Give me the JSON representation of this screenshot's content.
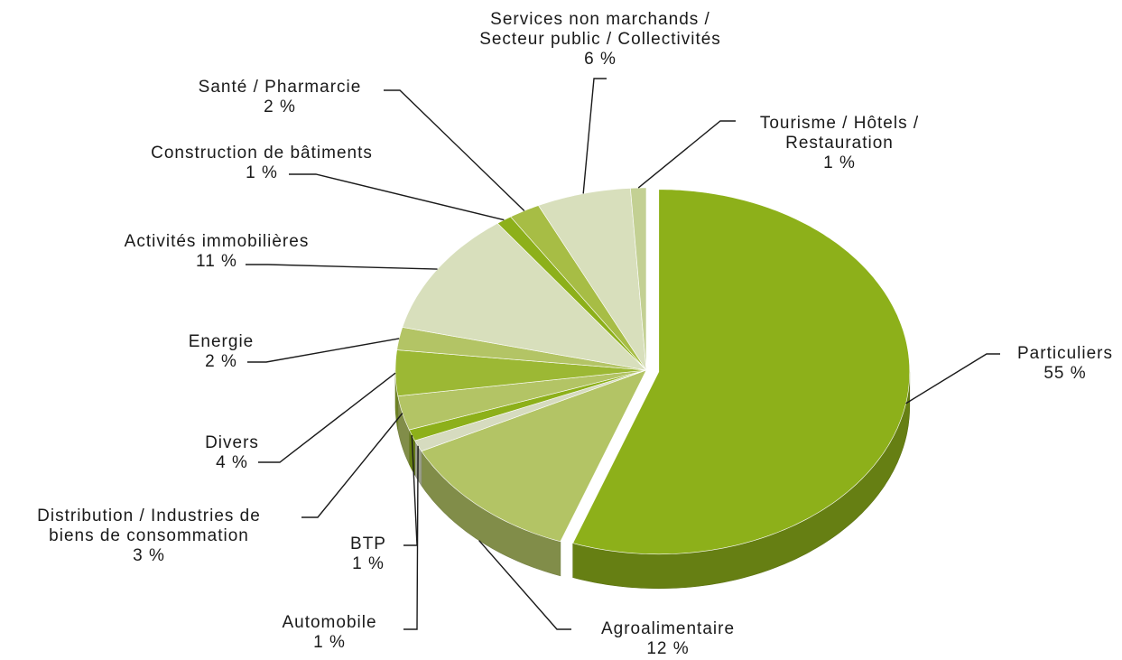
{
  "chart_data": {
    "type": "pie",
    "categories": [
      [
        "Particuliers"
      ],
      [
        "Agroalimentaire"
      ],
      [
        "Automobile"
      ],
      [
        "BTP"
      ],
      [
        "Distribution / Industries de",
        "biens de consommation"
      ],
      [
        "Divers"
      ],
      [
        "Energie"
      ],
      [
        "Activités immobilières"
      ],
      [
        "Construction de bâtiments"
      ],
      [
        "Santé / Pharmarcie"
      ],
      [
        "Services non marchands /",
        "Secteur public / Collectivités"
      ],
      [
        "Tourisme / Hôtels /",
        "Restauration"
      ]
    ],
    "values": [
      55,
      12,
      1,
      1,
      3,
      4,
      2,
      11,
      1,
      2,
      6,
      1
    ],
    "value_labels": [
      "55 %",
      "12 %",
      "1 %",
      "1 %",
      "3 %",
      "4 %",
      "2 %",
      "11 %",
      "1 %",
      "2 %",
      "6 %",
      "1 %"
    ],
    "colors": [
      "#8db01a",
      "#b3c465",
      "#d6dbbf",
      "#8db01a",
      "#b3c465",
      "#9cb834",
      "#b3c465",
      "#d8dfbc",
      "#8db01a",
      "#a7bd45",
      "#d8dfbc",
      "#c3d093"
    ]
  }
}
